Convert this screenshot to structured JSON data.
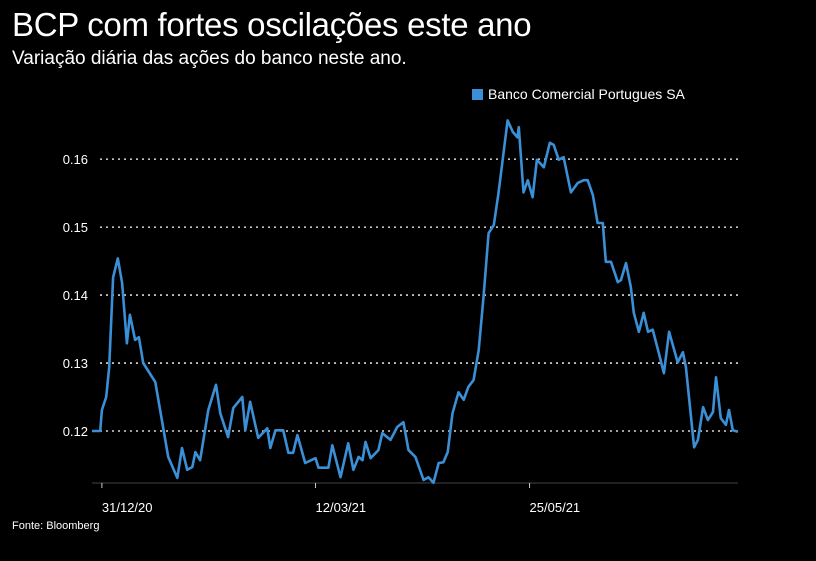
{
  "header": {
    "title": "BCP com fortes oscilações este ano",
    "subtitle": "Variação diária das ações do banco neste ano."
  },
  "source": "Fonte: Bloomberg",
  "colors": {
    "line": "#3a8fd6",
    "grid": "#ffffff",
    "background": "#000000"
  },
  "chart_data": {
    "type": "line",
    "title": "BCP com fortes oscilações este ano",
    "subtitle": "Variação diária das ações do banco neste ano.",
    "xlabel": "",
    "ylabel": "",
    "xlim": [
      0,
      150
    ],
    "ylim": [
      0.1125,
      0.1687
    ],
    "grid": true,
    "legend_position": "top-right",
    "yticks": [
      {
        "value": 0.12,
        "label": "0.12"
      },
      {
        "value": 0.13,
        "label": "0.13"
      },
      {
        "value": 0.14,
        "label": "0.14"
      },
      {
        "value": 0.15,
        "label": "0.15"
      },
      {
        "value": 0.16,
        "label": "0.16"
      }
    ],
    "xticks": [
      {
        "value": 2.3,
        "label": "31/12/20"
      },
      {
        "value": 51.9,
        "label": "12/03/21"
      },
      {
        "value": 101.6,
        "label": "25/05/21"
      }
    ],
    "series": [
      {
        "name": "Banco Comercial Portugues SA",
        "x": [
          0,
          1.9,
          2.3,
          3.3,
          4.0,
          4.9,
          6.0,
          7.0,
          8.1,
          8.8,
          10.0,
          10.9,
          11.9,
          14.7,
          17.7,
          19.8,
          20.9,
          22.1,
          23.3,
          24.0,
          25.1,
          27.0,
          28.8,
          29.8,
          31.6,
          32.8,
          34.9,
          35.6,
          36.7,
          38.6,
          40.7,
          41.4,
          42.6,
          44.4,
          45.6,
          46.7,
          47.7,
          49.5,
          51.9,
          52.6,
          54.9,
          55.8,
          57.7,
          59.5,
          60.7,
          61.9,
          62.8,
          63.5,
          64.7,
          66.5,
          67.4,
          69.3,
          70.9,
          72.3,
          73.5,
          75.1,
          77.0,
          78.1,
          79.3,
          80.5,
          81.6,
          82.6,
          83.7,
          85.1,
          86.3,
          87.4,
          88.6,
          89.8,
          90.9,
          92.1,
          93.3,
          94.4,
          96.5,
          97.7,
          98.8,
          99.1,
          100.2,
          101.2,
          102.3,
          103.3,
          104.9,
          106.3,
          107.2,
          108.4,
          109.5,
          111.2,
          112.8,
          114.2,
          115.1,
          116.3,
          117.4,
          118.6,
          119.3,
          120.5,
          122.1,
          122.8,
          124.0,
          125.1,
          125.8,
          127.0,
          128.1,
          129.1,
          130.2,
          131.6,
          132.8,
          134.0,
          136.0,
          137.2,
          137.9,
          139.8,
          140.7,
          141.9,
          143.0,
          144.2,
          144.9,
          146.0,
          147.2,
          147.9,
          148.8,
          150.0
        ],
        "values": [
          0.12,
          0.12,
          0.1231,
          0.125,
          0.1294,
          0.1426,
          0.1454,
          0.1418,
          0.1329,
          0.1371,
          0.1334,
          0.1338,
          0.13,
          0.1272,
          0.1162,
          0.1131,
          0.1175,
          0.1143,
          0.1147,
          0.1169,
          0.1157,
          0.1231,
          0.1268,
          0.1226,
          0.1191,
          0.1234,
          0.125,
          0.1201,
          0.1243,
          0.119,
          0.1204,
          0.1175,
          0.1201,
          0.1201,
          0.1168,
          0.1168,
          0.1194,
          0.1153,
          0.116,
          0.1146,
          0.1146,
          0.1179,
          0.1132,
          0.1182,
          0.1143,
          0.1162,
          0.1157,
          0.1184,
          0.116,
          0.1172,
          0.1197,
          0.1187,
          0.1206,
          0.1213,
          0.1172,
          0.1162,
          0.1128,
          0.1132,
          0.1124,
          0.1153,
          0.1154,
          0.1169,
          0.1226,
          0.1257,
          0.1246,
          0.1265,
          0.1275,
          0.1319,
          0.1397,
          0.1491,
          0.1503,
          0.155,
          0.1657,
          0.164,
          0.1632,
          0.1647,
          0.1551,
          0.1569,
          0.1544,
          0.1599,
          0.1588,
          0.1624,
          0.1621,
          0.1599,
          0.1603,
          0.1551,
          0.1565,
          0.1569,
          0.1569,
          0.1547,
          0.1506,
          0.1506,
          0.1449,
          0.1449,
          0.1419,
          0.1422,
          0.1447,
          0.1412,
          0.1374,
          0.1346,
          0.1374,
          0.1346,
          0.1349,
          0.1315,
          0.1285,
          0.1346,
          0.1301,
          0.1316,
          0.1294,
          0.1176,
          0.1187,
          0.1235,
          0.1216,
          0.1228,
          0.1279,
          0.1219,
          0.1209,
          0.1231,
          0.1201,
          0.1199
        ]
      }
    ]
  }
}
